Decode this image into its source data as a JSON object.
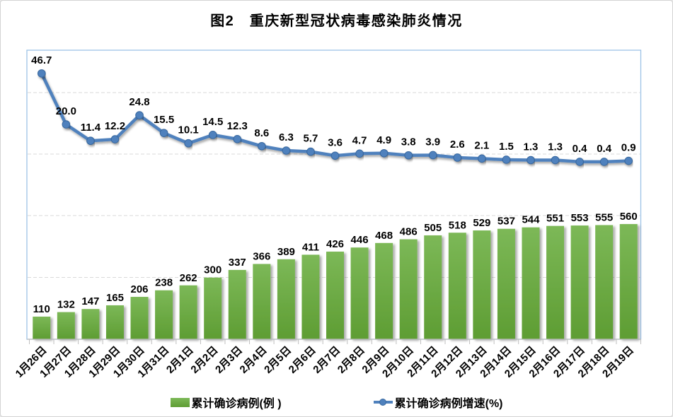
{
  "chart_data": {
    "type": "combo",
    "title": "图2　重庆新型冠状病毒感染肺炎情况",
    "categories": [
      "1月26日",
      "1月27日",
      "1月28日",
      "1月29日",
      "1月30日",
      "1月31日",
      "2月1日",
      "2月2日",
      "2月3日",
      "2月4日",
      "2月5日",
      "2月6日",
      "2月7日",
      "2月8日",
      "2月9日",
      "2月10日",
      "2月11日",
      "2月12日",
      "2月13日",
      "2月14日",
      "2月15日",
      "2月16日",
      "2月17日",
      "2月18日",
      "2月19日"
    ],
    "series": [
      {
        "name": "累计确诊病例(例 )",
        "type": "bar",
        "color": "#6BAB44",
        "values": [
          110,
          132,
          147,
          165,
          206,
          238,
          262,
          300,
          337,
          366,
          389,
          411,
          426,
          446,
          468,
          486,
          505,
          518,
          529,
          537,
          544,
          551,
          553,
          555,
          560
        ]
      },
      {
        "name": "累计确诊病例增速(%)",
        "type": "line",
        "color": "#4F81BD",
        "values": [
          46.7,
          20.0,
          11.4,
          12.2,
          24.8,
          15.5,
          10.1,
          14.5,
          12.3,
          8.6,
          6.3,
          5.7,
          3.6,
          4.7,
          4.9,
          3.8,
          3.9,
          2.6,
          2.1,
          1.5,
          1.3,
          1.3,
          0.4,
          0.4,
          0.9
        ],
        "label_decimals": 1
      }
    ],
    "legend": {
      "position": "bottom"
    },
    "axes": {
      "x": {
        "tick_label_rotation_deg": 45,
        "tick_marks": true
      },
      "y_left": {
        "visible": false,
        "min": 0
      },
      "y_right": {
        "visible": false
      }
    },
    "grid": {
      "horizontal": true,
      "style": "dashed",
      "color": "#D9D9D9"
    },
    "styles": {
      "bar_gradient_top": "#7CB857",
      "bar_gradient_bottom": "#5E9D33",
      "line_color": "#4F81BD",
      "marker_edge_color": "#38689F",
      "plot_border_color": "#9DC3E6",
      "axis_color": "#BFBFBF",
      "gridline_color": "#D9D9D9",
      "label_color": "#000000",
      "background": "#FFFFFF"
    }
  }
}
